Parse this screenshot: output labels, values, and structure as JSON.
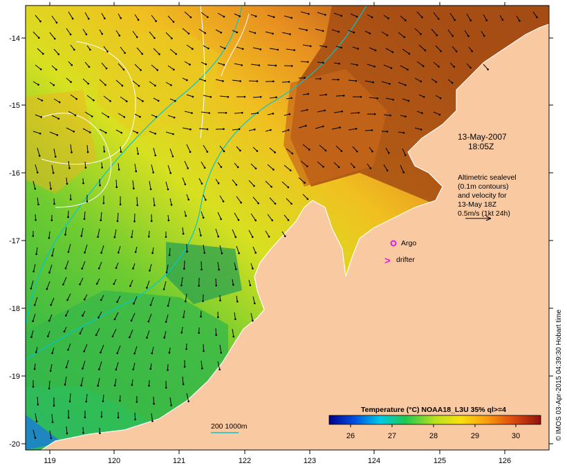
{
  "map": {
    "date_line1": "13-May-2007",
    "date_line2": "18:05Z",
    "legend_lines": [
      "Altimetric sealevel",
      "(0.1m contours)",
      "and velocity for",
      "13-May 18Z",
      "0.5m/s (1kt 24h)"
    ],
    "argo_label": "Argo",
    "drifter_label": "drifter",
    "drifter_symbol": ">",
    "isobath_label": "200  1000m",
    "credit": "© IMOS 03-Apr-2015 04:39:30 Hobart time",
    "x_ticks": [
      "119",
      "120",
      "121",
      "122",
      "123",
      "124",
      "125",
      "126"
    ],
    "y_ticks": [
      "-14",
      "-15",
      "-16",
      "-17",
      "-18",
      "-19",
      "-20"
    ],
    "colors": {
      "land": "#f9c9a1",
      "ocean_warm": "#a84e14",
      "ocean_mid": "#f0a020",
      "ocean_cool": "#e8e818",
      "ocean_green": "#30b848",
      "ocean_blue": "#1070d0",
      "isobath": "#00c8d0",
      "argo": "#e020e0",
      "drifter": "#e020e0"
    }
  },
  "colorbar": {
    "title": "Temperature (°C) NOAA18_L3U 35% ql>=4",
    "ticks": [
      "26",
      "27",
      "28",
      "29",
      "30"
    ]
  }
}
